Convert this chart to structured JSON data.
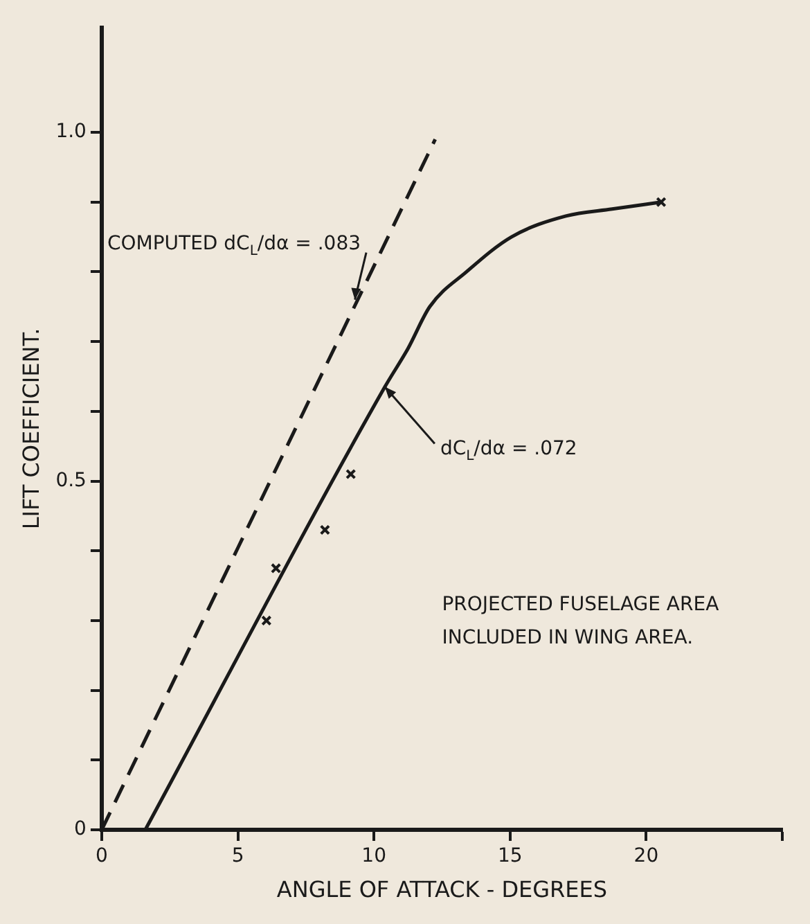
{
  "chart_data": {
    "type": "line",
    "xlabel": "ANGLE OF ATTACK - DEGREES",
    "ylabel": "LIFT COEFFICIENT.",
    "xlim": [
      0,
      25
    ],
    "xticks": [
      0,
      5,
      10,
      15,
      20,
      {
        "value": 25,
        "label": null
      }
    ],
    "ylim": [
      0,
      1.15
    ],
    "yticks": [
      0,
      {
        "value": 0.1,
        "label": null
      },
      {
        "value": 0.2,
        "label": null
      },
      {
        "value": 0.3,
        "label": null
      },
      {
        "value": 0.4,
        "label": null
      },
      0.5,
      {
        "value": 0.6,
        "label": null
      },
      {
        "value": 0.7,
        "label": null
      },
      {
        "value": 0.8,
        "label": null
      },
      {
        "value": 0.9,
        "label": null
      },
      {
        "value": 1,
        "label": "1.0"
      }
    ],
    "grid": false,
    "legend": false,
    "series": [
      {
        "type": "line",
        "color": "#1a1a1a",
        "line_style": "dashed",
        "marker": "none",
        "x": [
          0,
          12.25
        ],
        "values": [
          0,
          0.99
        ]
      },
      {
        "type": "line",
        "color": "#1a1a1a",
        "line_style": "solid",
        "marker": "none",
        "x": [
          1.6,
          10.4,
          11.25,
          12.05,
          13.4,
          15.05,
          17.05,
          18.75,
          20.55
        ],
        "values": [
          0,
          0.635,
          0.69,
          0.75,
          0.8,
          0.85,
          0.88,
          0.89,
          0.9
        ]
      },
      {
        "type": "scatter",
        "color": "#1a1a1a",
        "marker": "cross",
        "x": [
          6.05,
          6.4,
          8.2,
          9.15,
          20.55
        ],
        "values": [
          0.3,
          0.375,
          0.43,
          0.51,
          0.9
        ]
      }
    ],
    "annotations": [
      {
        "text": "COMPUTED dC$_{L}$/dα = .083",
        "x": 9.3,
        "y": 0.76
      },
      {
        "text": "dC$_{L}$/dα = .072",
        "x": 10.4,
        "y": 0.635
      },
      "PROJECTED FUSELAGE AREA INCLUDED IN WING AREA."
    ]
  }
}
